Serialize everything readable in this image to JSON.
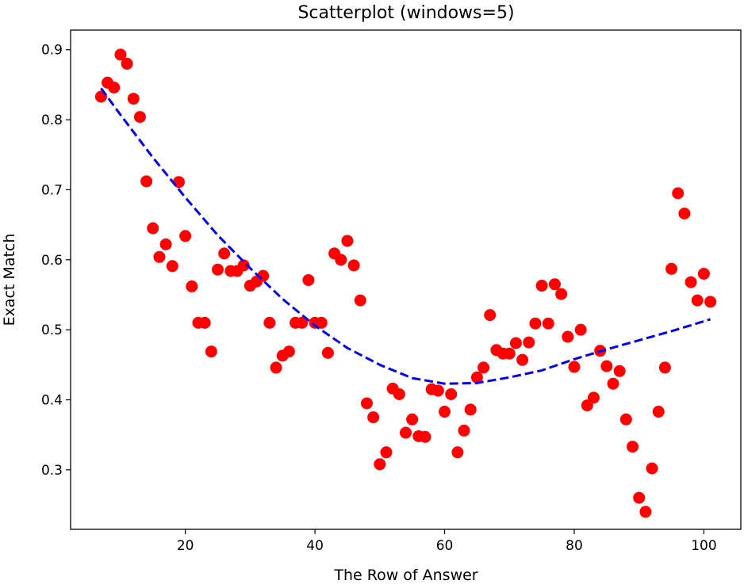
{
  "chart_data": {
    "type": "scatter",
    "title": "Scatterplot (windows=5)",
    "xlabel": "The Row of Answer",
    "ylabel": "Exact Match",
    "xlim": [
      2.3,
      105.7
    ],
    "ylim": [
      0.215,
      0.928
    ],
    "xticks": [
      20,
      40,
      60,
      80,
      100
    ],
    "yticks": [
      0.3,
      0.4,
      0.5,
      0.6,
      0.7,
      0.8,
      0.9
    ],
    "xtick_labels": [
      "20",
      "40",
      "60",
      "80",
      "100"
    ],
    "ytick_labels": [
      "0.3",
      "0.4",
      "0.5",
      "0.6",
      "0.7",
      "0.8",
      "0.9"
    ],
    "grid": false,
    "legend": "none",
    "colors": {
      "points": "#ff0000",
      "trend": "#0000ee",
      "axes": "#000000"
    },
    "series": [
      {
        "kind": "points",
        "x": [
          7,
          8,
          9,
          10,
          11,
          12,
          13,
          14,
          15,
          16,
          17,
          18,
          19,
          20,
          21,
          22,
          23,
          24,
          25,
          26,
          27,
          28,
          29,
          30,
          31,
          32,
          33,
          34,
          35,
          36,
          37,
          38,
          39,
          40,
          41,
          42,
          43,
          44,
          45,
          46,
          47,
          48,
          49,
          50,
          51,
          52,
          53,
          54,
          55,
          56,
          57,
          58,
          59,
          60,
          61,
          62,
          63,
          64,
          65,
          66,
          67,
          68,
          69,
          70,
          71,
          72,
          73,
          74,
          75,
          76,
          77,
          78,
          79,
          80,
          81,
          82,
          83,
          84,
          85,
          86,
          87,
          88,
          89,
          90,
          91,
          92,
          93,
          94,
          95,
          96,
          97,
          98,
          99,
          100,
          101
        ],
        "y": [
          0.833,
          0.853,
          0.846,
          0.893,
          0.88,
          0.83,
          0.804,
          0.712,
          0.645,
          0.604,
          0.622,
          0.591,
          0.711,
          0.634,
          0.562,
          0.51,
          0.51,
          0.469,
          0.586,
          0.609,
          0.584,
          0.584,
          0.592,
          0.563,
          0.569,
          0.577,
          0.51,
          0.446,
          0.463,
          0.469,
          0.51,
          0.51,
          0.571,
          0.51,
          0.51,
          0.467,
          0.609,
          0.6,
          0.627,
          0.592,
          0.542,
          0.395,
          0.375,
          0.308,
          0.325,
          0.416,
          0.408,
          0.353,
          0.372,
          0.348,
          0.347,
          0.415,
          0.413,
          0.383,
          0.408,
          0.325,
          0.356,
          0.386,
          0.432,
          0.446,
          0.521,
          0.471,
          0.466,
          0.466,
          0.481,
          0.457,
          0.482,
          0.509,
          0.563,
          0.509,
          0.565,
          0.551,
          0.49,
          0.447,
          0.5,
          0.392,
          0.403,
          0.47,
          0.448,
          0.423,
          0.441,
          0.372,
          0.333,
          0.26,
          0.24,
          0.302,
          0.383,
          0.446,
          0.587,
          0.695,
          0.666,
          0.568,
          0.542,
          0.58,
          0.54
        ]
      },
      {
        "kind": "trend",
        "x": [
          7,
          10,
          15,
          20,
          25,
          30,
          35,
          40,
          45,
          50,
          55,
          60,
          65,
          70,
          75,
          80,
          85,
          90,
          95,
          101
        ],
        "y": [
          0.845,
          0.807,
          0.746,
          0.689,
          0.635,
          0.588,
          0.544,
          0.506,
          0.474,
          0.45,
          0.431,
          0.423,
          0.424,
          0.432,
          0.442,
          0.458,
          0.472,
          0.485,
          0.498,
          0.515
        ]
      }
    ]
  }
}
